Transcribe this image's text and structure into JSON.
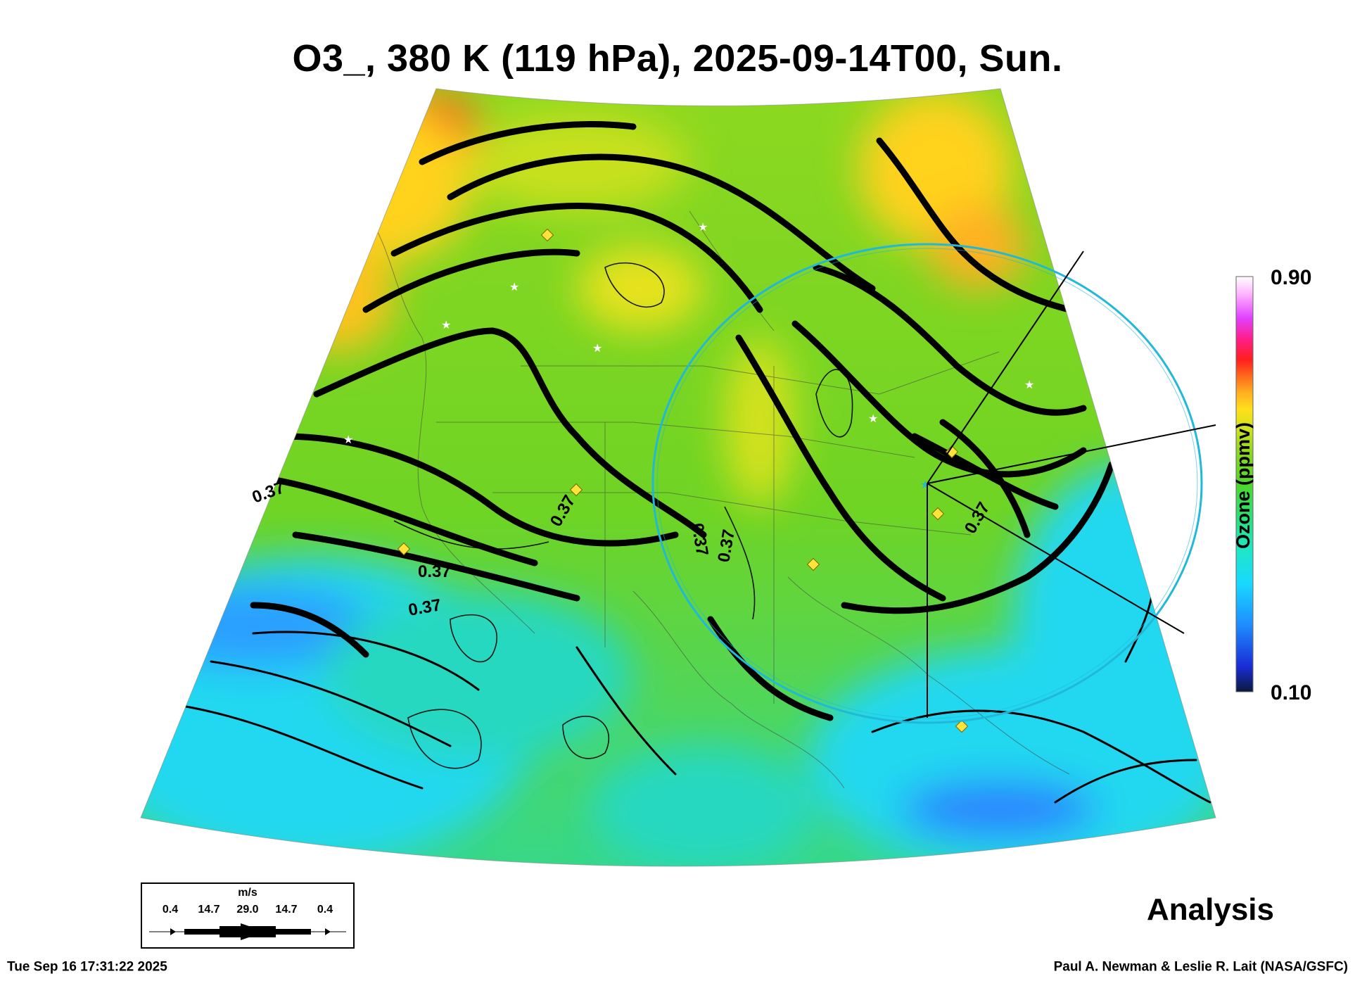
{
  "title": "O3_, 380 K (119 hPa), 2025-09-14T00, Sun.",
  "colorbar": {
    "label": "Ozone (ppmv)",
    "max_label": "0.90",
    "min_label": "0.10",
    "colors": [
      "#0b1a3a",
      "#1a2bd6",
      "#1e8cff",
      "#18d8ff",
      "#1fe6c8",
      "#28e078",
      "#4fd62a",
      "#8fd820",
      "#d6e21c",
      "#ffe01c",
      "#ffb020",
      "#ff6a1c",
      "#ff1e1e",
      "#ff1e8a",
      "#e040ff",
      "#ffb8ff",
      "#ffffff"
    ]
  },
  "contour_labels": [
    "0.37",
    "0.37",
    "0.37",
    "0.37",
    "0.37",
    "0.37",
    "0.37"
  ],
  "legend": {
    "unit": "m/s",
    "values": [
      "0.4",
      "14.7",
      "29.0",
      "14.7",
      "0.4"
    ]
  },
  "analysis_label": "Analysis",
  "footer": {
    "timestamp": "Tue Sep 16 17:31:22 2025",
    "credit": "Paul A. Newman & Leslie R. Lait (NASA/GSFC)"
  },
  "colors": {
    "field_orange": "#ff7a1c",
    "field_yellow": "#f5e21a",
    "field_green": "#4fd62a",
    "field_cyan": "#22d8f0",
    "field_blue": "#2a7fff",
    "circle": "#22b8d8",
    "station_marker": "#ffe23a"
  }
}
